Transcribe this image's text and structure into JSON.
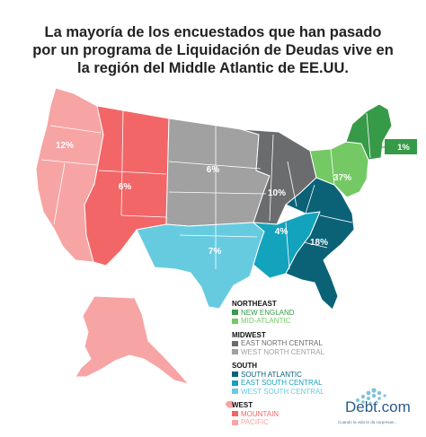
{
  "title_lines": [
    "La mayoría de los encuestados que han pasado",
    "por un programa de Liquidación de Deudas vive en",
    "la región del Middle Atlantic de EE.UU."
  ],
  "colors": {
    "pacific": "#f7a4a4",
    "mountain": "#f26668",
    "west_north_central": "#a2a1a1",
    "east_north_central": "#6b6c6e",
    "west_south_central": "#67cbe0",
    "east_south_central": "#13a3bd",
    "south_atlantic": "#0b6277",
    "new_england": "#379a48",
    "mid_atlantic": "#74c964",
    "border": "#ffffff"
  },
  "regions": {
    "pacific": "12%",
    "mountain": "6%",
    "west_north_central": "6%",
    "east_north_central": "10%",
    "west_south_central": "7%",
    "east_south_central": "4%",
    "south_atlantic": "18%",
    "mid_atlantic": "37%",
    "new_england": "1%"
  },
  "legend": {
    "northeast": {
      "title": "NORTHEAST",
      "items": [
        "NEW ENGLAND",
        "MID-ATLANTIC"
      ]
    },
    "midwest": {
      "title": "MIDWEST",
      "items": [
        "EAST NORTH CENTRAL",
        "WEST NORTH CENTRAL"
      ]
    },
    "south": {
      "title": "SOUTH",
      "items": [
        "SOUTH ATLANTIC",
        "EAST SOUTH CENTRAL",
        "WEST SOUTH CENTRAL"
      ]
    },
    "west": {
      "title": "WEST",
      "items": [
        "MOUNTAIN",
        "PACIFIC"
      ]
    }
  },
  "logo": {
    "brand": "Debt.com",
    "tagline": "Cuando la vida te da sorpresas..."
  }
}
